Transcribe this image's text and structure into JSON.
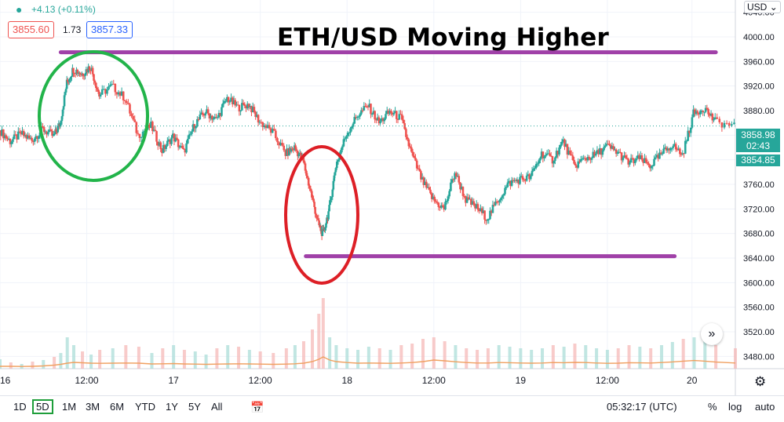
{
  "header": {
    "change": "+4.13 (+0.11%)",
    "bid": "3855.60",
    "spread": "1.73",
    "ask": "3857.33",
    "currency": "USD"
  },
  "title": "ETH/USD Moving Higher",
  "price_labels": {
    "last": "3858.98",
    "countdown": "02:43",
    "second": "3854.85"
  },
  "chart_data": {
    "type": "line",
    "y_axis": {
      "ylim": [
        3460,
        4060
      ],
      "ticks": [
        3480,
        3520,
        3560,
        3600,
        3640,
        3680,
        3720,
        3760,
        3800,
        3840,
        3880,
        3920,
        3960,
        4000,
        4040
      ],
      "tick_labels": [
        "3480.00",
        "3520.00",
        "3560.00",
        "3600.00",
        "3640.00",
        "3680.00",
        "3720.00",
        "3760.00",
        "3800.00",
        "3840.00",
        "3880.00",
        "3920.00",
        "3960.00",
        "4000.00",
        "4040.00"
      ]
    },
    "x_axis": {
      "ticks": [
        0,
        4.0,
        8.0,
        12.0,
        16.0,
        20.0,
        24.0,
        28.0,
        31.9
      ],
      "tick_labels": [
        "16",
        "12:00",
        "17",
        "12:00",
        "18",
        "12:00",
        "19",
        "12:00",
        "20"
      ],
      "xlim": [
        0,
        33.9
      ]
    },
    "series": [
      {
        "x": [
          0,
          0.5,
          1,
          1.5,
          2,
          2.5,
          2.8,
          3.1,
          3.4,
          3.8,
          4.2,
          4.6,
          5.2,
          5.8,
          6.4,
          7,
          7.5,
          8,
          8.5,
          9,
          9.5,
          10,
          10.5,
          11,
          11.5,
          12,
          12.6,
          13.2,
          13.6,
          14,
          14.4,
          14.7,
          14.9,
          15.2,
          15.5,
          16,
          16.5,
          17,
          17.5,
          18,
          18.5,
          19,
          19.5,
          20,
          20.5,
          21,
          21.5,
          22,
          22.5,
          23,
          23.5,
          24,
          24.5,
          25,
          25.5,
          26,
          26.5,
          27,
          27.5,
          28,
          28.5,
          29,
          29.5,
          30,
          30.5,
          31,
          31.5,
          32,
          32.5,
          33,
          33.9
        ],
        "y": [
          3848,
          3830,
          3842,
          3832,
          3850,
          3838,
          3860,
          3925,
          3948,
          3940,
          3952,
          3905,
          3920,
          3900,
          3840,
          3855,
          3815,
          3838,
          3812,
          3858,
          3878,
          3865,
          3900,
          3885,
          3890,
          3862,
          3845,
          3810,
          3820,
          3798,
          3740,
          3695,
          3678,
          3720,
          3790,
          3842,
          3872,
          3888,
          3860,
          3878,
          3868,
          3810,
          3765,
          3735,
          3720,
          3780,
          3735,
          3722,
          3705,
          3735,
          3762,
          3768,
          3772,
          3810,
          3800,
          3830,
          3790,
          3802,
          3808,
          3822,
          3812,
          3795,
          3802,
          3790,
          3808,
          3825,
          3808,
          3875,
          3885,
          3862,
          3855
        ]
      }
    ],
    "volume": [
      120,
      80,
      60,
      90,
      110,
      150,
      200,
      400,
      300,
      220,
      180,
      240,
      260,
      300,
      280,
      200,
      260,
      300,
      240,
      220,
      180,
      260,
      300,
      280,
      240,
      220,
      200,
      260,
      300,
      350,
      500,
      700,
      900,
      400,
      300,
      260,
      240,
      280,
      260,
      240,
      300,
      320,
      380,
      400,
      350,
      300,
      260,
      240,
      260,
      300,
      280,
      260,
      240,
      260,
      300,
      280,
      320,
      300,
      260,
      240,
      260,
      300,
      280,
      260,
      300,
      340,
      380,
      400,
      360,
      300,
      260
    ],
    "volume_ma": [
      30,
      30,
      28,
      30,
      35,
      45,
      55,
      70,
      80,
      75,
      70,
      68,
      70,
      72,
      70,
      60,
      62,
      65,
      60,
      58,
      55,
      58,
      60,
      62,
      60,
      58,
      55,
      58,
      62,
      70,
      90,
      120,
      150,
      110,
      90,
      78,
      70,
      72,
      70,
      68,
      72,
      78,
      90,
      110,
      100,
      88,
      78,
      72,
      72,
      78,
      76,
      72,
      70,
      72,
      78,
      76,
      80,
      78,
      72,
      68,
      70,
      76,
      74,
      72,
      78,
      86,
      96,
      104,
      96,
      84,
      72
    ]
  },
  "annotations": {
    "resistance_y": 3975,
    "support_y": 3643,
    "resistance_x": [
      2.8,
      33.0
    ],
    "support_x": [
      14.1,
      31.1
    ]
  },
  "toolbar": {
    "ranges": [
      "1D",
      "5D",
      "1M",
      "3M",
      "6M",
      "YTD",
      "1Y",
      "5Y",
      "All"
    ],
    "active": "5D",
    "time": "05:32:17 (UTC)",
    "percent": "%",
    "log": "log",
    "auto": "auto"
  },
  "colors": {
    "up": "#26a69a",
    "down": "#ef5350",
    "purple": "#a040a8",
    "green_circle": "#22b44a",
    "red_circle": "#dd1f26",
    "volume_ma": "#f0a060"
  }
}
